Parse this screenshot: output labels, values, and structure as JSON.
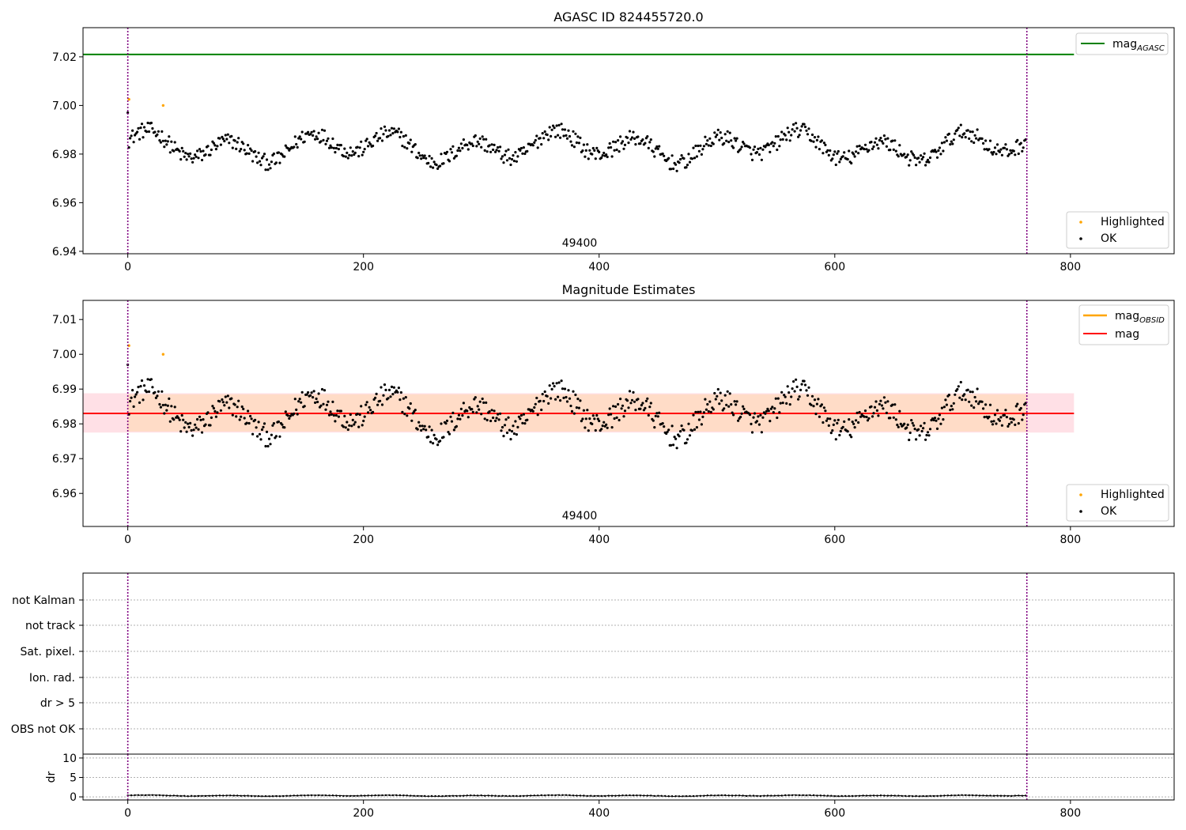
{
  "chart_data": [
    {
      "type": "scatter",
      "title": "AGASC ID 824455720.0",
      "xlim": [
        -38,
        888
      ],
      "ylim": [
        6.939,
        7.032
      ],
      "xticks": [
        0,
        200,
        400,
        600,
        800
      ],
      "yticks": [
        6.94,
        6.96,
        6.98,
        7.0,
        7.02
      ],
      "ytick_labels": [
        "6.94",
        "6.96",
        "6.98",
        "7.00",
        "7.02"
      ],
      "obs_boundaries": [
        0,
        763
      ],
      "obs_label": "49400",
      "hlines": [
        {
          "name_main": "mag",
          "name_sub": "AGASC",
          "y": 7.021,
          "x_range": [
            -38,
            803
          ],
          "color": "#008000"
        }
      ],
      "legend_lines": [
        {
          "main": "mag",
          "sub": "AGASC",
          "color": "#008000"
        }
      ],
      "legend_points": [
        {
          "label": "Highlighted",
          "color": "#ffa500"
        },
        {
          "label": "OK",
          "color": "#000000"
        }
      ],
      "highlighted_points": [
        {
          "x": 1,
          "y": 7.0025
        },
        {
          "x": 30,
          "y": 7.0
        }
      ],
      "series": {
        "n": 763,
        "mean": 6.983,
        "base_amplitude": 0.007,
        "noise": 0.0032,
        "start_value": 6.997
      }
    },
    {
      "type": "scatter",
      "title": "Magnitude Estimates",
      "xlim": [
        -38,
        888
      ],
      "ylim": [
        6.9505,
        7.0155
      ],
      "xticks": [
        0,
        200,
        400,
        600,
        800
      ],
      "yticks": [
        6.96,
        6.97,
        6.98,
        6.99,
        7.0,
        7.01
      ],
      "ytick_labels": [
        "6.96",
        "6.97",
        "6.98",
        "6.99",
        "7.00",
        "7.01"
      ],
      "obs_boundaries": [
        0,
        763
      ],
      "obs_label": "49400",
      "band": {
        "outer": [
          6.9775,
          6.9888
        ],
        "inner": [
          6.9778,
          6.9885
        ],
        "x_range": [
          -38,
          803
        ],
        "outer_color": "#ffe0e6",
        "inner_color": "#ffdcc7"
      },
      "hlines": [
        {
          "name_main": "mag",
          "name_sub": "OBSID",
          "y": 6.983,
          "x_range": [
            0,
            763
          ],
          "color": "#ffa500"
        },
        {
          "name_main": "mag",
          "name_sub": "",
          "y": 6.983,
          "x_range": [
            -38,
            803
          ],
          "color": "#ff0000"
        }
      ],
      "legend_lines": [
        {
          "main": "mag",
          "sub": "OBSID",
          "color": "#ffa500"
        },
        {
          "main": "mag",
          "sub": "",
          "color": "#ff0000"
        }
      ],
      "legend_points": [
        {
          "label": "Highlighted",
          "color": "#ffa500"
        },
        {
          "label": "OK",
          "color": "#000000"
        }
      ],
      "highlighted_points": [
        {
          "x": 1,
          "y": 7.0025
        },
        {
          "x": 30,
          "y": 7.0
        }
      ],
      "series": {
        "n": 763,
        "mean": 6.983,
        "base_amplitude": 0.007,
        "noise": 0.0032,
        "start_value": 6.997
      }
    },
    {
      "type": "scatter",
      "title": "",
      "xlim": [
        -38,
        888
      ],
      "flag_categories": [
        "not Kalman",
        "not track",
        "Sat. pixel.",
        "Ion. rad.",
        "dr > 5",
        "OBS not OK"
      ],
      "flag_points": [],
      "obs_boundaries": [
        0,
        763
      ]
    },
    {
      "type": "line",
      "title": "",
      "ylabel": "dr",
      "xlim": [
        -38,
        888
      ],
      "ylim": [
        -0.8,
        11
      ],
      "xticks": [
        0,
        200,
        400,
        600,
        800
      ],
      "yticks": [
        0,
        5,
        10
      ],
      "ytick_labels": [
        "0",
        "5",
        "10"
      ],
      "obs_boundaries": [
        0,
        763
      ],
      "series": {
        "n": 763,
        "mean": 0.3,
        "base_amplitude": 0.15,
        "noise": 0.05
      }
    }
  ]
}
